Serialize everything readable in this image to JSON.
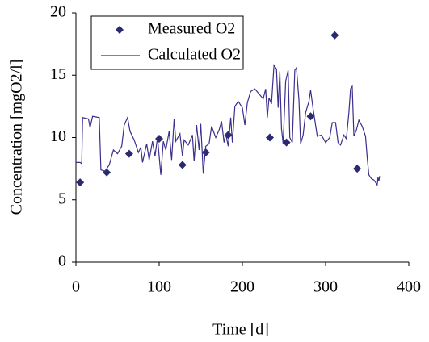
{
  "chart_data": {
    "type": "scatter",
    "x_label": "Time [d]",
    "y_label": "Concentration [mgO2/l]",
    "xlim": [
      0,
      400
    ],
    "xticks": [
      0,
      100,
      200,
      300,
      400
    ],
    "ylim": [
      0,
      20
    ],
    "yticks": [
      0,
      5,
      10,
      15,
      20
    ],
    "legend": "upper-left",
    "series": [
      {
        "name": "Measured O2",
        "type": "scatter",
        "color": "#2b2a6e",
        "x": [
          5,
          37,
          64,
          100,
          128,
          156,
          183,
          233,
          253,
          282,
          311,
          338
        ],
        "values": [
          6.4,
          7.2,
          8.7,
          9.9,
          7.8,
          8.8,
          10.2,
          10.0,
          9.6,
          11.7,
          18.2,
          7.5
        ]
      },
      {
        "name": "Calculated O2",
        "type": "line",
        "color": "#3b2e8c",
        "x": [
          0,
          5,
          7,
          8,
          15,
          17,
          20,
          28,
          30,
          35,
          40,
          45,
          50,
          55,
          58,
          62,
          65,
          70,
          75,
          78,
          80,
          85,
          88,
          92,
          95,
          98,
          102,
          105,
          108,
          112,
          115,
          118,
          120,
          125,
          128,
          130,
          135,
          140,
          142,
          145,
          148,
          150,
          153,
          156,
          160,
          163,
          168,
          172,
          175,
          178,
          180,
          183,
          186,
          188,
          191,
          195,
          200,
          203,
          206,
          210,
          215,
          220,
          225,
          228,
          230,
          232,
          235,
          238,
          241,
          243,
          245,
          247,
          249,
          252,
          255,
          257,
          260,
          263,
          265,
          268,
          270,
          273,
          276,
          280,
          282,
          285,
          290,
          295,
          300,
          305,
          308,
          312,
          315,
          318,
          322,
          325,
          328,
          330,
          332,
          334,
          337,
          340,
          344,
          348,
          350,
          352,
          355,
          358,
          362,
          363,
          364,
          365
        ],
        "values": [
          8,
          8,
          7.9,
          11.6,
          11.5,
          10.8,
          11.7,
          11.6,
          7.4,
          7.3,
          7.8,
          9,
          8.7,
          9.3,
          11,
          11.6,
          10.5,
          9.8,
          8.8,
          9.2,
          8,
          9.5,
          8.2,
          9.7,
          8.5,
          10,
          7,
          9.7,
          9,
          10.5,
          8.2,
          11.5,
          9.7,
          10.3,
          8.5,
          9.8,
          9.4,
          10.2,
          8.1,
          11,
          9,
          11.1,
          7.1,
          9.3,
          9.5,
          10.9,
          10,
          10.6,
          11.3,
          9.6,
          10.3,
          9.3,
          11.6,
          9.6,
          12.5,
          12.9,
          12.4,
          11,
          12.8,
          13.7,
          13.9,
          13.5,
          13.1,
          13.9,
          11.6,
          13.2,
          12.7,
          15.8,
          15.5,
          12.4,
          15.3,
          10.7,
          9.5,
          14.5,
          15.4,
          10,
          9.6,
          15.4,
          15.6,
          13,
          9.5,
          10.2,
          12,
          12.9,
          13.8,
          12.3,
          10.1,
          10.2,
          9.6,
          10,
          11.2,
          11.2,
          9.6,
          9.4,
          10.2,
          9.9,
          12,
          13.9,
          14.1,
          10.1,
          10.6,
          11.4,
          10.9,
          10.1,
          8.4,
          7,
          6.7,
          6.6,
          6.2,
          6.8,
          6.5,
          6.9
        ]
      }
    ]
  }
}
